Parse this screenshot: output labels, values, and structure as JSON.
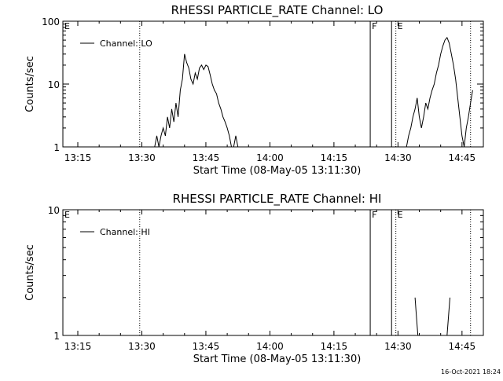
{
  "footer": {
    "timestamp": "16-Oct-2021 18:24"
  },
  "chart_data": [
    {
      "type": "line",
      "title": "RHESSI PARTICLE_RATE Channel: LO",
      "xlabel": "Start Time (08-May-05 13:11:30)",
      "ylabel": "Counts/sec",
      "x_ticks": [
        "13:15",
        "13:30",
        "13:45",
        "14:00",
        "14:15",
        "14:30",
        "14:45"
      ],
      "y_ticks": [
        "1",
        "10",
        "100"
      ],
      "y_scale": "log",
      "ylim": [
        1,
        100
      ],
      "xlim": [
        "13:11:30",
        "14:50"
      ],
      "grid": false,
      "legend": {
        "position": "top-left",
        "entries": [
          "Channel: LO"
        ]
      },
      "markers": [
        {
          "time": "13:11:30",
          "label": "E",
          "style": "none"
        },
        {
          "time": "13:29:30",
          "label": "",
          "style": "dotted"
        },
        {
          "time": "14:23:30",
          "label": "F",
          "style": "solid"
        },
        {
          "time": "14:28:30",
          "label": "",
          "style": "solid"
        },
        {
          "time": "14:29:30",
          "label": "E",
          "style": "dotted"
        },
        {
          "time": "14:47:00",
          "label": "",
          "style": "dotted"
        }
      ],
      "series": [
        {
          "name": "Channel: LO",
          "segments": [
            [
              [
                "13:33:00",
                1
              ],
              [
                "13:33:30",
                1.5
              ],
              [
                "13:34:00",
                1
              ],
              [
                "13:34:30",
                1.5
              ],
              [
                "13:35:00",
                2
              ],
              [
                "13:35:30",
                1.5
              ],
              [
                "13:36:00",
                3
              ],
              [
                "13:36:30",
                2
              ],
              [
                "13:37:00",
                4
              ],
              [
                "13:37:30",
                2.5
              ],
              [
                "13:38:00",
                5
              ],
              [
                "13:38:30",
                3
              ],
              [
                "13:39:00",
                8
              ],
              [
                "13:39:30",
                12
              ],
              [
                "13:40:00",
                30
              ],
              [
                "13:40:30",
                22
              ],
              [
                "13:41:00",
                18
              ],
              [
                "13:41:30",
                12
              ],
              [
                "13:42:00",
                10
              ],
              [
                "13:42:30",
                15
              ],
              [
                "13:43:00",
                12
              ],
              [
                "13:43:30",
                18
              ],
              [
                "13:44:00",
                20
              ],
              [
                "13:44:30",
                17
              ],
              [
                "13:45:00",
                20
              ],
              [
                "13:45:30",
                19
              ],
              [
                "13:46:00",
                14
              ],
              [
                "13:46:30",
                10
              ],
              [
                "13:47:00",
                8
              ],
              [
                "13:47:30",
                7
              ],
              [
                "13:48:00",
                5
              ],
              [
                "13:48:30",
                4
              ],
              [
                "13:49:00",
                3
              ],
              [
                "13:49:30",
                2.5
              ],
              [
                "13:50:00",
                2
              ],
              [
                "13:50:30",
                1.5
              ],
              [
                "13:51:00",
                1
              ]
            ],
            [
              [
                "13:51:30",
                1
              ],
              [
                "13:52:00",
                1.5
              ],
              [
                "13:52:30",
                1
              ]
            ],
            [
              [
                "14:32:00",
                1
              ],
              [
                "14:32:30",
                1.5
              ],
              [
                "14:33:00",
                2
              ],
              [
                "14:33:30",
                3
              ],
              [
                "14:34:00",
                4
              ],
              [
                "14:34:30",
                6
              ],
              [
                "14:35:00",
                3
              ],
              [
                "14:35:30",
                2
              ],
              [
                "14:36:00",
                3
              ],
              [
                "14:36:30",
                5
              ],
              [
                "14:37:00",
                4
              ],
              [
                "14:37:30",
                6
              ],
              [
                "14:38:00",
                8
              ],
              [
                "14:38:30",
                10
              ],
              [
                "14:39:00",
                15
              ],
              [
                "14:39:30",
                20
              ],
              [
                "14:40:00",
                30
              ],
              [
                "14:40:30",
                40
              ],
              [
                "14:41:00",
                50
              ],
              [
                "14:41:30",
                55
              ],
              [
                "14:42:00",
                45
              ],
              [
                "14:42:30",
                30
              ],
              [
                "14:43:00",
                20
              ],
              [
                "14:43:30",
                12
              ],
              [
                "14:44:00",
                6
              ],
              [
                "14:44:30",
                3
              ],
              [
                "14:45:00",
                1.5
              ],
              [
                "14:45:30",
                1
              ],
              [
                "14:46:00",
                2
              ],
              [
                "14:46:30",
                3
              ],
              [
                "14:47:00",
                5
              ],
              [
                "14:47:30",
                8
              ]
            ]
          ]
        }
      ]
    },
    {
      "type": "line",
      "title": "RHESSI PARTICLE_RATE Channel: HI",
      "xlabel": "Start Time (08-May-05 13:11:30)",
      "ylabel": "Counts/sec",
      "x_ticks": [
        "13:15",
        "13:30",
        "13:45",
        "14:00",
        "14:15",
        "14:30",
        "14:45"
      ],
      "y_ticks": [
        "1",
        "10"
      ],
      "y_scale": "log",
      "ylim": [
        1,
        10
      ],
      "xlim": [
        "13:11:30",
        "14:50"
      ],
      "grid": false,
      "legend": {
        "position": "top-left",
        "entries": [
          "Channel: HI"
        ]
      },
      "markers": [
        {
          "time": "13:11:30",
          "label": "E",
          "style": "none"
        },
        {
          "time": "13:29:30",
          "label": "",
          "style": "dotted"
        },
        {
          "time": "14:23:30",
          "label": "F",
          "style": "solid"
        },
        {
          "time": "14:28:30",
          "label": "",
          "style": "solid"
        },
        {
          "time": "14:29:30",
          "label": "E",
          "style": "dotted"
        },
        {
          "time": "14:47:00",
          "label": "",
          "style": "dotted"
        }
      ],
      "series": [
        {
          "name": "Channel: HI",
          "segments": [
            [
              [
                "14:34:00",
                2
              ],
              [
                "14:34:20",
                1.4
              ],
              [
                "14:34:40",
                1
              ]
            ],
            [
              [
                "14:41:30",
                1
              ],
              [
                "14:41:50",
                1.4
              ],
              [
                "14:42:10",
                2
              ]
            ]
          ]
        }
      ]
    }
  ]
}
